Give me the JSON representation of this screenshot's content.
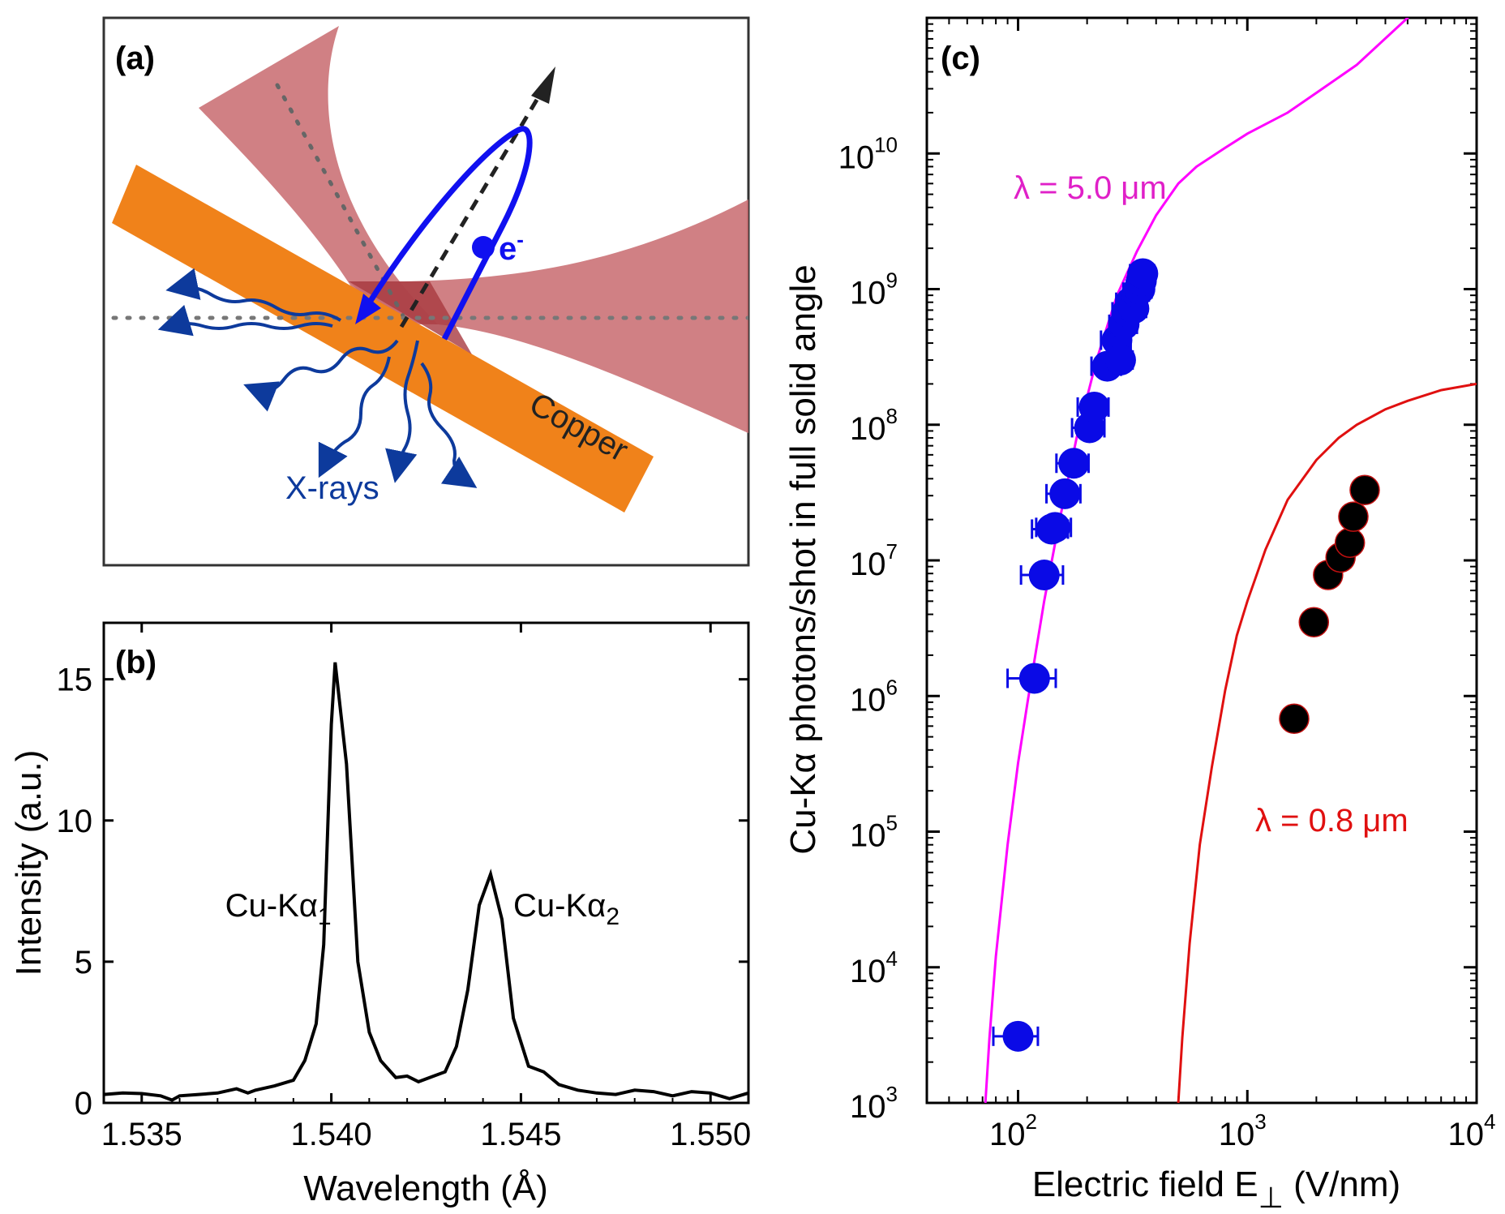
{
  "panel_a": {
    "label": "(a)",
    "electron_label": "e",
    "electron_sup": "-",
    "xray_label": "X-rays",
    "target_label": "Copper",
    "colors": {
      "copper": "#f0821a",
      "laser": "#c86a6f",
      "electron": "#1010f0",
      "xray": "#0d3a9c"
    }
  },
  "chart_data": [
    {
      "id": "b",
      "type": "line",
      "panel_label": "(b)",
      "xlabel": "Wavelength (Å)",
      "ylabel": "Intensity (a.u.)",
      "xlim": [
        1.534,
        1.551
      ],
      "ylim": [
        0,
        17
      ],
      "xticks": [
        1.535,
        1.54,
        1.545,
        1.55
      ],
      "xtick_labels": [
        "1.535",
        "1.540",
        "1.545",
        "1.550"
      ],
      "yticks": [
        0,
        5,
        10,
        15
      ],
      "ytick_labels": [
        "0",
        "5",
        "10",
        "15"
      ],
      "grid": false,
      "annotations": [
        {
          "text": "Cu-Kα",
          "sub": "1",
          "x": 1.5372,
          "y": 7.0
        },
        {
          "text": "Cu-Kα",
          "sub": "2",
          "x": 1.5448,
          "y": 7.0
        }
      ],
      "series": [
        {
          "color": "#000000",
          "x": [
            1.534,
            1.5345,
            1.535,
            1.5355,
            1.5358,
            1.536,
            1.5365,
            1.537,
            1.5375,
            1.5378,
            1.538,
            1.5385,
            1.539,
            1.5393,
            1.5396,
            1.5398,
            1.54,
            1.5401,
            1.5404,
            1.5407,
            1.541,
            1.5413,
            1.5417,
            1.542,
            1.5423,
            1.5427,
            1.543,
            1.5433,
            1.5436,
            1.5439,
            1.5442,
            1.5445,
            1.5448,
            1.5452,
            1.5456,
            1.546,
            1.5465,
            1.547,
            1.5475,
            1.548,
            1.5485,
            1.549,
            1.5495,
            1.55,
            1.5505,
            1.551
          ],
          "y": [
            0.3,
            0.35,
            0.33,
            0.25,
            0.1,
            0.25,
            0.3,
            0.35,
            0.5,
            0.35,
            0.45,
            0.6,
            0.8,
            1.5,
            2.8,
            5.6,
            13.4,
            15.6,
            12.0,
            5.0,
            2.5,
            1.5,
            0.9,
            0.95,
            0.75,
            0.95,
            1.1,
            2.0,
            4.0,
            7.0,
            8.1,
            6.5,
            3.0,
            1.3,
            1.1,
            0.65,
            0.45,
            0.35,
            0.3,
            0.45,
            0.4,
            0.25,
            0.4,
            0.35,
            0.15,
            0.35
          ]
        }
      ]
    },
    {
      "id": "c",
      "type": "scatter",
      "panel_label": "(c)",
      "xlabel": "Electric field E",
      "xlabel_sub": "⊥",
      "xlabel_unit": " (V/nm)",
      "ylabel": "Cu-Kα photons/shot in full solid angle",
      "xscale": "log",
      "yscale": "log",
      "xlim": [
        40,
        10000
      ],
      "ylim": [
        1000,
        100000000000.0
      ],
      "xtick_bases": [
        "10",
        "10",
        "10"
      ],
      "xtick_exponents": [
        "2",
        "3",
        "4"
      ],
      "xtick_values": [
        100,
        1000,
        10000
      ],
      "ytick_exponents": [
        "3",
        "4",
        "5",
        "6",
        "7",
        "8",
        "9",
        "10"
      ],
      "ytick_values": [
        1000.0,
        10000.0,
        100000.0,
        1000000.0,
        10000000.0,
        100000000.0,
        1000000000.0,
        10000000000.0
      ],
      "ytick_base": "10",
      "grid": false,
      "annotations": [
        {
          "text": "λ = 5.0 μm",
          "color": "#e020c8"
        },
        {
          "text": "λ = 0.8 μm",
          "color": "#e01010"
        }
      ],
      "series": [
        {
          "type": "line",
          "color": "#ff00ff",
          "x": [
            72,
            75,
            80,
            90,
            100,
            110,
            130,
            150,
            180,
            220,
            270,
            330,
            400,
            500,
            600,
            800,
            1000,
            1500,
            2000,
            3000,
            5000,
            10000
          ],
          "y": [
            1000,
            3000,
            12000,
            80000,
            320000,
            900000,
            5000000,
            18000000,
            80000000,
            300000000,
            900000000,
            1900000000,
            3500000000,
            6000000000,
            8000000000,
            11000000000,
            14000000000,
            20000000000,
            28000000000,
            45000000000,
            100000000000,
            600000000000
          ]
        },
        {
          "type": "line",
          "color": "#e01010",
          "x": [
            500,
            520,
            560,
            620,
            700,
            800,
            900,
            1000,
            1200,
            1500,
            2000,
            2500,
            3000,
            4000,
            5000,
            7000,
            10000
          ],
          "y": [
            1000,
            3000,
            15000,
            80000,
            300000,
            1100000,
            2800000,
            5000000,
            12000000,
            28000000,
            55000000,
            80000000,
            100000000,
            130000000,
            150000000,
            180000000,
            200000000
          ]
        },
        {
          "type": "points",
          "color": "#0a0ae6",
          "errorbars": true,
          "x": [
            100,
            118,
            130,
            140,
            145,
            160,
            175,
            205,
            215,
            245,
            270,
            280,
            290,
            300,
            310,
            320,
            330,
            340,
            345,
            350
          ],
          "y": [
            3100,
            1350000,
            7800000,
            17000000,
            17500000,
            31000000,
            52000000,
            95000000,
            135000000,
            270000000,
            420000000,
            300000000,
            550000000,
            680000000,
            800000000,
            720000000,
            950000000,
            1000000000,
            1150000000,
            1300000000
          ],
          "xerr": [
            22,
            28,
            27,
            25,
            25,
            27,
            28,
            33,
            33,
            36,
            40,
            36,
            40,
            42,
            42,
            42,
            42,
            42,
            42,
            42
          ]
        },
        {
          "type": "points",
          "color": "#000000",
          "errorbars": false,
          "x": [
            1600,
            1950,
            2250,
            2550,
            2800,
            2900,
            3250
          ],
          "y": [
            680000,
            3500000,
            7800000,
            10500000,
            13500000,
            21000000,
            33000000
          ]
        }
      ]
    }
  ]
}
